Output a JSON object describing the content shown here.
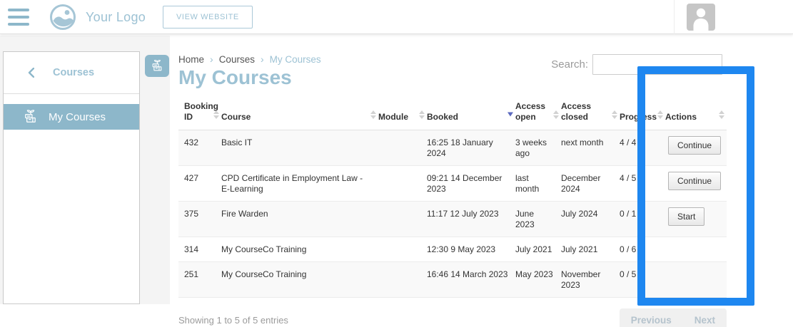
{
  "colors": {
    "accent": "#9dc2d4",
    "accent_strong": "#8db7ca",
    "annotation_blue": "#1e87f0",
    "sort_active": "#5b6abf"
  },
  "topbar": {
    "logo_text": "Your Logo",
    "view_website_label": "VIEW WEBSITE"
  },
  "sidebar": {
    "back_label": "Courses",
    "items": [
      {
        "label": "My Courses",
        "active": true
      }
    ]
  },
  "breadcrumb": {
    "items": [
      "Home",
      "Courses",
      "My Courses"
    ],
    "separator": "›"
  },
  "page": {
    "title": "My Courses",
    "search_label": "Search:",
    "search_value": ""
  },
  "table": {
    "columns": [
      "Booking ID",
      "Course",
      "Module",
      "Booked",
      "Access open",
      "Access closed",
      "Progress",
      "Actions"
    ],
    "sorted_column": "Booked",
    "sort_direction": "desc",
    "rows": [
      {
        "booking_id": "432",
        "course": "Basic IT",
        "module": "",
        "booked": "16:25 18 January 2024",
        "access_open": "3 weeks ago",
        "access_closed": "next month",
        "progress": "4 / 4",
        "action": "Continue"
      },
      {
        "booking_id": "427",
        "course": "CPD Certificate in Employment Law - E-Learning",
        "module": "",
        "booked": "09:21 14 December 2023",
        "access_open": "last month",
        "access_closed": "December 2024",
        "progress": "4 / 5",
        "action": "Continue"
      },
      {
        "booking_id": "375",
        "course": "Fire Warden",
        "module": "",
        "booked": "11:17 12 July 2023",
        "access_open": "June 2023",
        "access_closed": "July 2024",
        "progress": "0 / 1",
        "action": "Start"
      },
      {
        "booking_id": "314",
        "course": "My CourseCo Training",
        "module": "",
        "booked": "12:30 9 May 2023",
        "access_open": "July 2021",
        "access_closed": "July 2021",
        "progress": "0 / 6",
        "action": ""
      },
      {
        "booking_id": "251",
        "course": "My CourseCo Training",
        "module": "",
        "booked": "16:46 14 March 2023",
        "access_open": "May 2023",
        "access_closed": "November 2023",
        "progress": "0 / 5",
        "action": ""
      }
    ],
    "summary": "Showing 1 to 5 of 5 entries",
    "pagination": {
      "previous": "Previous",
      "next": "Next"
    }
  }
}
